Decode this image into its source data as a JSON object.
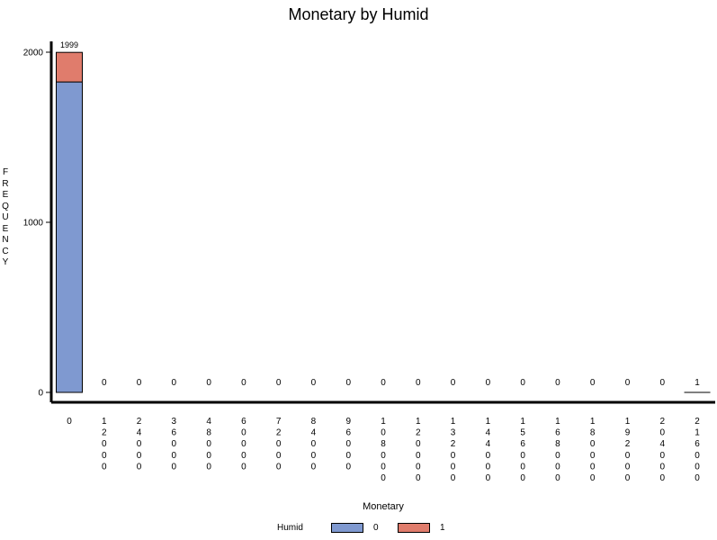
{
  "chart_data": {
    "type": "bar",
    "stacked": true,
    "title": "Monetary by Humid",
    "xlabel": "Monetary",
    "ylabel": "FREQUENCY",
    "yticks": [
      0,
      1000,
      2000
    ],
    "ylim": [
      0,
      2000
    ],
    "categories": [
      "0",
      "12000",
      "24000",
      "36000",
      "48000",
      "60000",
      "72000",
      "84000",
      "96000",
      "108000",
      "120000",
      "132000",
      "144000",
      "156000",
      "168000",
      "180000",
      "192000",
      "204000",
      "216000"
    ],
    "totals": [
      1999,
      0,
      0,
      0,
      0,
      0,
      0,
      0,
      0,
      0,
      0,
      0,
      0,
      0,
      0,
      0,
      0,
      0,
      1
    ],
    "series": [
      {
        "name": "0",
        "color": "#7f99d0",
        "values": [
          1825,
          0,
          0,
          0,
          0,
          0,
          0,
          0,
          0,
          0,
          0,
          0,
          0,
          0,
          0,
          0,
          0,
          0,
          1
        ]
      },
      {
        "name": "1",
        "color": "#e07c6c",
        "values": [
          174,
          0,
          0,
          0,
          0,
          0,
          0,
          0,
          0,
          0,
          0,
          0,
          0,
          0,
          0,
          0,
          0,
          0,
          0
        ]
      }
    ],
    "legend": {
      "title": "Humid",
      "position": "bottom"
    },
    "grid": false
  }
}
